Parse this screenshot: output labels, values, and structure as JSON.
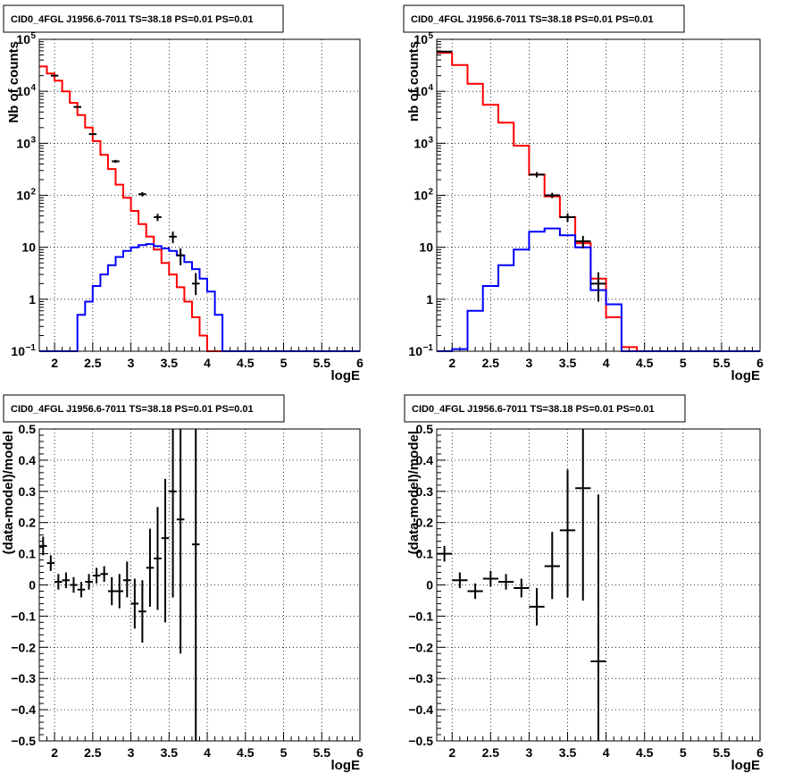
{
  "chart_data": [
    {
      "type": "line",
      "title": "CID0_4FGL J1956.6-7011 TS=38.18 PS=0.01 PS=0.01",
      "xlabel": "logE",
      "ylabel": "Nb of counts",
      "log_y": true,
      "xlim": [
        1.8,
        6
      ],
      "ylim": [
        0.1,
        100000
      ],
      "grid": true,
      "xticks": [
        "2",
        "2.5",
        "3",
        "3.5",
        "4",
        "4.5",
        "5",
        "5.5",
        "6"
      ],
      "yticks": [
        {
          "v": 0.1,
          "label": "10",
          "sup": "−1"
        },
        {
          "v": 1,
          "label": "1",
          "sup": ""
        },
        {
          "v": 10,
          "label": "10",
          "sup": ""
        },
        {
          "v": 100,
          "label": "10",
          "sup": "2"
        },
        {
          "v": 1000,
          "label": "10",
          "sup": "3"
        },
        {
          "v": 10000,
          "label": "10",
          "sup": "4"
        },
        {
          "v": 100000,
          "label": "10",
          "sup": "5"
        }
      ],
      "bin_edges": [
        1.8,
        1.9,
        2.0,
        2.1,
        2.2,
        2.3,
        2.4,
        2.5,
        2.6,
        2.7,
        2.8,
        2.9,
        3.0,
        3.1,
        3.2,
        3.3,
        3.4,
        3.5,
        3.6,
        3.7,
        3.8,
        3.9,
        4.0,
        4.1,
        4.2,
        4.3,
        4.4,
        4.5,
        4.6,
        4.7,
        4.8,
        4.9,
        5.0,
        5.1,
        5.2,
        5.3,
        5.4,
        5.5,
        5.6,
        5.7,
        5.8,
        5.9,
        6.0
      ],
      "series": [
        {
          "color": "#ff0000",
          "values": [
            30000,
            22000,
            16000,
            10000,
            6000,
            3500,
            2000,
            1100,
            600,
            320,
            160,
            90,
            50,
            28,
            16,
            9,
            5,
            3,
            1.7,
            0.9,
            0.45,
            0.2,
            0.1,
            0.1,
            0.1,
            0.1,
            0.1,
            0.1,
            0.1,
            0.1,
            0.1,
            0.1,
            0.1,
            0.1,
            0.1,
            0.1,
            0.1,
            0.1,
            0.1,
            0.1,
            0.1,
            0.1
          ]
        },
        {
          "color": "#0000ff",
          "values": [
            0.1,
            0.1,
            0.1,
            0.1,
            0.1,
            0.5,
            0.9,
            1.8,
            3,
            4.5,
            6.5,
            8.5,
            10,
            11,
            11.5,
            10.5,
            9.5,
            8.5,
            7,
            5.2,
            3.8,
            2.5,
            1.4,
            0.5,
            0.1,
            0.1,
            0.1,
            0.1,
            0.1,
            0.1,
            0.1,
            0.1,
            0.1,
            0.1,
            0.1,
            0.1,
            0.1,
            0.1,
            0.1,
            0.1,
            0.1,
            0.1
          ]
        }
      ],
      "points": [
        {
          "x": 2.0,
          "xerr": 0.05,
          "y": 20000,
          "ylo": 19500,
          "yhi": 20500
        },
        {
          "x": 2.3,
          "xerr": 0.05,
          "y": 5000,
          "ylo": 4900,
          "yhi": 5100
        },
        {
          "x": 2.5,
          "xerr": 0.05,
          "y": 1500,
          "ylo": 1450,
          "yhi": 1550
        },
        {
          "x": 2.8,
          "xerr": 0.05,
          "y": 450,
          "ylo": 420,
          "yhi": 480
        },
        {
          "x": 3.15,
          "xerr": 0.05,
          "y": 105,
          "ylo": 95,
          "yhi": 115
        },
        {
          "x": 3.35,
          "xerr": 0.05,
          "y": 38,
          "ylo": 32,
          "yhi": 44
        },
        {
          "x": 3.55,
          "xerr": 0.05,
          "y": 16,
          "ylo": 12,
          "yhi": 20
        },
        {
          "x": 3.65,
          "xerr": 0.05,
          "y": 7,
          "ylo": 4.5,
          "yhi": 9.5
        },
        {
          "x": 3.85,
          "xerr": 0.05,
          "y": 2,
          "ylo": 1.2,
          "yhi": 3.2
        }
      ]
    },
    {
      "type": "line",
      "title": "CID0_4FGL J1956.6-7011 TS=38.18 PS=0.01 PS=0.01",
      "xlabel": "logE",
      "ylabel": "nb of counts",
      "log_y": true,
      "xlim": [
        1.8,
        6
      ],
      "ylim": [
        0.1,
        100000
      ],
      "grid": true,
      "xticks": [
        "2",
        "2.5",
        "3",
        "3.5",
        "4",
        "4.5",
        "5",
        "5.5",
        "6"
      ],
      "yticks": [
        {
          "v": 0.1,
          "label": "10",
          "sup": "−1"
        },
        {
          "v": 1,
          "label": "1",
          "sup": ""
        },
        {
          "v": 10,
          "label": "10",
          "sup": ""
        },
        {
          "v": 100,
          "label": "10",
          "sup": "2"
        },
        {
          "v": 1000,
          "label": "10",
          "sup": "3"
        },
        {
          "v": 10000,
          "label": "10",
          "sup": "4"
        },
        {
          "v": 100000,
          "label": "10",
          "sup": "5"
        }
      ],
      "bin_edges": [
        1.8,
        2.0,
        2.2,
        2.4,
        2.6,
        2.8,
        3.0,
        3.2,
        3.4,
        3.6,
        3.8,
        4.0,
        4.2,
        4.4,
        4.6,
        4.8,
        5.0,
        5.2,
        5.4,
        5.6,
        5.8,
        6.0
      ],
      "series": [
        {
          "color": "#ff0000",
          "values": [
            55000,
            32000,
            14000,
            5500,
            2500,
            900,
            250,
            95,
            38,
            12,
            2.5,
            0.45,
            0.12,
            0.1,
            0.1,
            0.1,
            0.1,
            0.1,
            0.1,
            0.1,
            0.1
          ]
        },
        {
          "color": "#0000ff",
          "values": [
            0.1,
            0.11,
            0.6,
            1.8,
            4.5,
            9,
            20,
            23,
            17,
            10,
            1.5,
            0.8,
            0.1,
            0.1,
            0.1,
            0.1,
            0.1,
            0.1,
            0.1,
            0.1,
            0.1
          ]
        }
      ],
      "points": [
        {
          "x": 1.9,
          "xerr": 0.1,
          "y": 58000,
          "ylo": 57000,
          "yhi": 59000
        },
        {
          "x": 3.1,
          "xerr": 0.1,
          "y": 250,
          "ylo": 220,
          "yhi": 280
        },
        {
          "x": 3.3,
          "xerr": 0.1,
          "y": 100,
          "ylo": 88,
          "yhi": 112
        },
        {
          "x": 3.5,
          "xerr": 0.1,
          "y": 38,
          "ylo": 31,
          "yhi": 45
        },
        {
          "x": 3.7,
          "xerr": 0.1,
          "y": 13,
          "ylo": 9.5,
          "yhi": 16.5
        },
        {
          "x": 3.9,
          "xerr": 0.1,
          "y": 2,
          "ylo": 0.9,
          "yhi": 3.3
        }
      ]
    },
    {
      "type": "scatter",
      "title": "CID0_4FGL J1956.6-7011 TS=38.18 PS=0.01 PS=0.01",
      "xlabel": "logE",
      "ylabel": "(data-model)/model",
      "log_y": false,
      "xlim": [
        1.8,
        6
      ],
      "ylim": [
        -0.5,
        0.5
      ],
      "grid": true,
      "xticks": [
        "2",
        "2.5",
        "3",
        "3.5",
        "4",
        "4.5",
        "5",
        "5.5",
        "6"
      ],
      "yticks": [
        {
          "v": -0.5,
          "label": "−0.5"
        },
        {
          "v": -0.4,
          "label": "−0.4"
        },
        {
          "v": -0.3,
          "label": "−0.3"
        },
        {
          "v": -0.2,
          "label": "−0.2"
        },
        {
          "v": -0.1,
          "label": "−0.1"
        },
        {
          "v": 0,
          "label": "0"
        },
        {
          "v": 0.1,
          "label": "0.1"
        },
        {
          "v": 0.2,
          "label": "0.2"
        },
        {
          "v": 0.3,
          "label": "0.3"
        },
        {
          "v": 0.4,
          "label": "0.4"
        },
        {
          "v": 0.5,
          "label": "0.5"
        }
      ],
      "points": [
        {
          "x": 1.85,
          "xerr": 0.05,
          "y": 0.125,
          "ylo": 0.095,
          "yhi": 0.155
        },
        {
          "x": 1.95,
          "xerr": 0.05,
          "y": 0.07,
          "ylo": 0.045,
          "yhi": 0.095
        },
        {
          "x": 2.05,
          "xerr": 0.05,
          "y": 0.01,
          "ylo": -0.015,
          "yhi": 0.035
        },
        {
          "x": 2.15,
          "xerr": 0.05,
          "y": 0.015,
          "ylo": -0.01,
          "yhi": 0.04
        },
        {
          "x": 2.25,
          "xerr": 0.05,
          "y": 0.0,
          "ylo": -0.025,
          "yhi": 0.025
        },
        {
          "x": 2.35,
          "xerr": 0.05,
          "y": -0.015,
          "ylo": -0.04,
          "yhi": 0.01
        },
        {
          "x": 2.45,
          "xerr": 0.05,
          "y": 0.01,
          "ylo": -0.015,
          "yhi": 0.035
        },
        {
          "x": 2.55,
          "xerr": 0.05,
          "y": 0.03,
          "ylo": 0.005,
          "yhi": 0.055
        },
        {
          "x": 2.65,
          "xerr": 0.05,
          "y": 0.035,
          "ylo": 0.01,
          "yhi": 0.06
        },
        {
          "x": 2.75,
          "xerr": 0.05,
          "y": -0.02,
          "ylo": -0.065,
          "yhi": 0.025
        },
        {
          "x": 2.85,
          "xerr": 0.05,
          "y": -0.02,
          "ylo": -0.075,
          "yhi": 0.035
        },
        {
          "x": 2.95,
          "xerr": 0.05,
          "y": 0.015,
          "ylo": -0.04,
          "yhi": 0.075
        },
        {
          "x": 3.05,
          "xerr": 0.05,
          "y": -0.06,
          "ylo": -0.14,
          "yhi": 0.02
        },
        {
          "x": 3.15,
          "xerr": 0.05,
          "y": -0.085,
          "ylo": -0.185,
          "yhi": 0.015
        },
        {
          "x": 3.25,
          "xerr": 0.05,
          "y": 0.055,
          "ylo": -0.07,
          "yhi": 0.18
        },
        {
          "x": 3.35,
          "xerr": 0.05,
          "y": 0.085,
          "ylo": -0.08,
          "yhi": 0.25
        },
        {
          "x": 3.45,
          "xerr": 0.05,
          "y": 0.15,
          "ylo": -0.12,
          "yhi": 0.34
        },
        {
          "x": 3.55,
          "xerr": 0.05,
          "y": 0.3,
          "ylo": -0.04,
          "yhi": 0.5
        },
        {
          "x": 3.65,
          "xerr": 0.05,
          "y": 0.21,
          "ylo": -0.22,
          "yhi": 0.5
        },
        {
          "x": 3.85,
          "xerr": 0.05,
          "y": 0.13,
          "ylo": -0.5,
          "yhi": 0.5
        }
      ]
    },
    {
      "type": "scatter",
      "title": "CID0_4FGL J1956.6-7011 TS=38.18 PS=0.01 PS=0.01",
      "xlabel": "logE",
      "ylabel": "(data-model)/model",
      "log_y": false,
      "xlim": [
        1.8,
        6
      ],
      "ylim": [
        -0.5,
        0.5
      ],
      "grid": true,
      "xticks": [
        "2",
        "2.5",
        "3",
        "3.5",
        "4",
        "4.5",
        "5",
        "5.5",
        "6"
      ],
      "yticks": [
        {
          "v": -0.5,
          "label": "−0.5"
        },
        {
          "v": -0.4,
          "label": "−0.4"
        },
        {
          "v": -0.3,
          "label": "−0.3"
        },
        {
          "v": -0.2,
          "label": "−0.2"
        },
        {
          "v": -0.1,
          "label": "−0.1"
        },
        {
          "v": 0,
          "label": "0"
        },
        {
          "v": 0.1,
          "label": "0.1"
        },
        {
          "v": 0.2,
          "label": "0.2"
        },
        {
          "v": 0.3,
          "label": "0.3"
        },
        {
          "v": 0.4,
          "label": "0.4"
        },
        {
          "v": 0.5,
          "label": "0.5"
        }
      ],
      "points": [
        {
          "x": 1.9,
          "xerr": 0.1,
          "y": 0.1,
          "ylo": 0.075,
          "yhi": 0.125
        },
        {
          "x": 2.1,
          "xerr": 0.1,
          "y": 0.015,
          "ylo": -0.01,
          "yhi": 0.04
        },
        {
          "x": 2.3,
          "xerr": 0.1,
          "y": -0.02,
          "ylo": -0.045,
          "yhi": 0.005
        },
        {
          "x": 2.5,
          "xerr": 0.1,
          "y": 0.02,
          "ylo": -0.005,
          "yhi": 0.045
        },
        {
          "x": 2.7,
          "xerr": 0.1,
          "y": 0.01,
          "ylo": -0.015,
          "yhi": 0.035
        },
        {
          "x": 2.9,
          "xerr": 0.1,
          "y": -0.01,
          "ylo": -0.04,
          "yhi": 0.02
        },
        {
          "x": 3.1,
          "xerr": 0.1,
          "y": -0.07,
          "ylo": -0.13,
          "yhi": -0.01
        },
        {
          "x": 3.3,
          "xerr": 0.1,
          "y": 0.06,
          "ylo": -0.045,
          "yhi": 0.17
        },
        {
          "x": 3.5,
          "xerr": 0.1,
          "y": 0.175,
          "ylo": -0.04,
          "yhi": 0.37
        },
        {
          "x": 3.7,
          "xerr": 0.1,
          "y": 0.31,
          "ylo": -0.05,
          "yhi": 0.5
        },
        {
          "x": 3.9,
          "xerr": 0.1,
          "y": -0.245,
          "ylo": -0.5,
          "yhi": 0.29
        }
      ]
    }
  ]
}
